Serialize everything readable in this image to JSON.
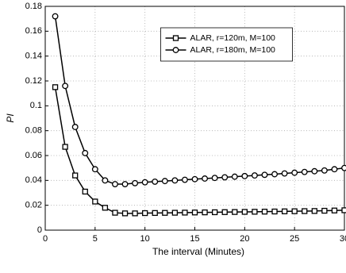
{
  "chart_data": {
    "type": "line",
    "xlabel": "The interval (Minutes)",
    "ylabel": "PI",
    "x": [
      1,
      2,
      3,
      4,
      5,
      6,
      7,
      8,
      9,
      10,
      11,
      12,
      13,
      14,
      15,
      16,
      17,
      18,
      19,
      20,
      21,
      22,
      23,
      24,
      25,
      26,
      27,
      28,
      29,
      30
    ],
    "series": [
      {
        "name": "ALAR, r=120m, M=100",
        "color": "#000000",
        "marker": "square",
        "values": [
          0.115,
          0.067,
          0.044,
          0.031,
          0.023,
          0.018,
          0.014,
          0.0135,
          0.0135,
          0.0137,
          0.0138,
          0.0139,
          0.014,
          0.0141,
          0.0142,
          0.0143,
          0.0144,
          0.0145,
          0.0146,
          0.0147,
          0.0148,
          0.0149,
          0.015,
          0.0151,
          0.0152,
          0.0153,
          0.0154,
          0.0156,
          0.0158,
          0.016
        ]
      },
      {
        "name": "ALAR, r=180m, M=100",
        "color": "#000000",
        "marker": "circle",
        "values": [
          0.172,
          0.116,
          0.083,
          0.062,
          0.049,
          0.04,
          0.037,
          0.037,
          0.0378,
          0.0385,
          0.039,
          0.0395,
          0.04,
          0.0405,
          0.041,
          0.0415,
          0.042,
          0.0425,
          0.043,
          0.0435,
          0.044,
          0.0445,
          0.045,
          0.0456,
          0.0462,
          0.0468,
          0.0474,
          0.048,
          0.049,
          0.05
        ]
      }
    ],
    "xlim": [
      0,
      30
    ],
    "xticks": [
      0,
      5,
      10,
      15,
      20,
      25,
      30
    ],
    "ylim": [
      0,
      0.18
    ],
    "yticks": [
      0,
      0.02,
      0.04,
      0.06,
      0.08,
      0.1,
      0.12,
      0.14,
      0.16,
      0.18
    ],
    "grid": true,
    "legend": "upper center"
  }
}
